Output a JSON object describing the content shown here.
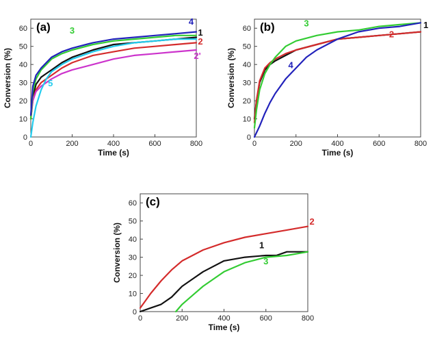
{
  "figure": {
    "panels": [
      "(a)",
      "(b)",
      "(c)"
    ]
  },
  "chart_data": [
    {
      "type": "line",
      "panel_label": "(a)",
      "xlabel": "Time (s)",
      "ylabel": "Conversion (%)",
      "xlim": [
        0,
        800
      ],
      "ylim": [
        0,
        65
      ],
      "xticks": [
        0,
        200,
        400,
        600,
        800
      ],
      "yticks": [
        0,
        10,
        20,
        30,
        40,
        50,
        60
      ],
      "grid": false,
      "series": [
        {
          "name": "1",
          "color": "#111111",
          "x": [
            0,
            10,
            25,
            50,
            75,
            100,
            150,
            200,
            300,
            400,
            500,
            600,
            700,
            800
          ],
          "y": [
            10,
            22,
            29,
            33,
            35,
            37,
            41,
            44,
            48,
            51,
            52,
            53,
            54,
            55
          ]
        },
        {
          "name": "2",
          "color": "#d42b2b",
          "x": [
            0,
            10,
            25,
            50,
            75,
            100,
            150,
            200,
            300,
            400,
            500,
            600,
            700,
            800
          ],
          "y": [
            10,
            20,
            26,
            30,
            32,
            34,
            38,
            41,
            45,
            47,
            49,
            50,
            51,
            52
          ]
        },
        {
          "name": "2'",
          "color": "#cc33cc",
          "x": [
            0,
            10,
            25,
            50,
            75,
            100,
            150,
            200,
            300,
            400,
            500,
            600,
            700,
            800
          ],
          "y": [
            12,
            20,
            25,
            28,
            30,
            32,
            35,
            37,
            40,
            43,
            45,
            46,
            47,
            48
          ]
        },
        {
          "name": "3",
          "color": "#33cc33",
          "x": [
            0,
            10,
            25,
            50,
            75,
            100,
            150,
            200,
            300,
            400,
            500,
            600,
            700,
            800
          ],
          "y": [
            10,
            25,
            32,
            37,
            40,
            43,
            46,
            48,
            51,
            53,
            54,
            55,
            56,
            56
          ]
        },
        {
          "name": "4",
          "color": "#2222bb",
          "x": [
            0,
            10,
            25,
            50,
            75,
            100,
            150,
            200,
            300,
            400,
            500,
            600,
            700,
            800
          ],
          "y": [
            12,
            28,
            34,
            38,
            41,
            44,
            47,
            49,
            52,
            54,
            55,
            56,
            57,
            58
          ]
        },
        {
          "name": "5",
          "color": "#22ccee",
          "x": [
            0,
            10,
            25,
            50,
            75,
            100,
            150,
            200,
            300,
            400,
            500,
            600,
            700,
            800
          ],
          "y": [
            0,
            8,
            17,
            26,
            32,
            36,
            40,
            43,
            47,
            50,
            52,
            53,
            54,
            54
          ]
        }
      ],
      "labels": [
        {
          "text": "4",
          "x": 775,
          "y": 62,
          "color": "#2222bb"
        },
        {
          "text": "1",
          "x": 820,
          "y": 56,
          "color": "#111111"
        },
        {
          "text": "2",
          "x": 820,
          "y": 51,
          "color": "#d42b2b"
        },
        {
          "text": "2'",
          "x": 805,
          "y": 43,
          "color": "#cc33cc"
        },
        {
          "text": "3",
          "x": 200,
          "y": 57,
          "color": "#33cc33"
        },
        {
          "text": "5",
          "x": 95,
          "y": 28,
          "color": "#22ccee"
        }
      ]
    },
    {
      "type": "line",
      "panel_label": "(b)",
      "xlabel": "Time (s)",
      "ylabel": "Conversion (%)",
      "xlim": [
        0,
        800
      ],
      "ylim": [
        0,
        65
      ],
      "xticks": [
        0,
        200,
        400,
        600,
        800
      ],
      "yticks": [
        0,
        10,
        20,
        30,
        40,
        50,
        60
      ],
      "grid": false,
      "series": [
        {
          "name": "1",
          "color": "#111111",
          "x": [
            0,
            10,
            25,
            50,
            75,
            100,
            150,
            200,
            300,
            400,
            500,
            600,
            700,
            800
          ],
          "y": [
            10,
            20,
            30,
            37,
            40,
            42,
            45,
            48,
            51,
            54,
            55,
            56,
            57,
            58
          ]
        },
        {
          "name": "2",
          "color": "#d42b2b",
          "x": [
            0,
            10,
            25,
            50,
            75,
            100,
            150,
            200,
            300,
            400,
            500,
            600,
            700,
            800
          ],
          "y": [
            8,
            20,
            31,
            38,
            41,
            43,
            46,
            48,
            51,
            54,
            55,
            56,
            57,
            58
          ]
        },
        {
          "name": "3",
          "color": "#33cc33",
          "x": [
            0,
            10,
            25,
            50,
            75,
            100,
            150,
            200,
            300,
            400,
            500,
            600,
            700,
            800
          ],
          "y": [
            5,
            15,
            26,
            35,
            40,
            44,
            50,
            53,
            56,
            58,
            59,
            61,
            62,
            63
          ]
        },
        {
          "name": "4",
          "color": "#2222bb",
          "x": [
            0,
            25,
            50,
            75,
            100,
            150,
            200,
            250,
            300,
            400,
            500,
            600,
            700,
            800
          ],
          "y": [
            0,
            6,
            13,
            19,
            24,
            32,
            38,
            44,
            48,
            54,
            58,
            60,
            61,
            63
          ]
        }
      ],
      "labels": [
        {
          "text": "1",
          "x": 825,
          "y": 60,
          "color": "#111111"
        },
        {
          "text": "2",
          "x": 660,
          "y": 55,
          "color": "#d42b2b"
        },
        {
          "text": "3",
          "x": 250,
          "y": 61,
          "color": "#33cc33"
        },
        {
          "text": "4",
          "x": 175,
          "y": 38,
          "color": "#2222bb"
        }
      ]
    },
    {
      "type": "line",
      "panel_label": "(c)",
      "xlabel": "Time (s)",
      "ylabel": "Conversion (%)",
      "xlim": [
        0,
        800
      ],
      "ylim": [
        0,
        65
      ],
      "xticks": [
        0,
        200,
        400,
        600,
        800
      ],
      "yticks": [
        0,
        10,
        20,
        30,
        40,
        50,
        60
      ],
      "grid": false,
      "series": [
        {
          "name": "1",
          "color": "#111111",
          "x": [
            0,
            50,
            100,
            150,
            200,
            250,
            300,
            400,
            500,
            600,
            650,
            700,
            800
          ],
          "y": [
            0,
            2,
            4,
            8,
            14,
            18,
            22,
            28,
            30,
            31,
            31,
            33,
            33
          ]
        },
        {
          "name": "2",
          "color": "#d42b2b",
          "x": [
            0,
            25,
            50,
            100,
            150,
            200,
            300,
            400,
            500,
            600,
            700,
            800
          ],
          "y": [
            2,
            6,
            10,
            17,
            23,
            28,
            34,
            38,
            41,
            43,
            45,
            47
          ]
        },
        {
          "name": "3",
          "color": "#33cc33",
          "x": [
            170,
            200,
            250,
            300,
            350,
            400,
            500,
            600,
            700,
            800
          ],
          "y": [
            0,
            4,
            9,
            14,
            18,
            22,
            27,
            30,
            31,
            33
          ]
        }
      ],
      "labels": [
        {
          "text": "1",
          "x": 580,
          "y": 35,
          "color": "#111111"
        },
        {
          "text": "2",
          "x": 820,
          "y": 48,
          "color": "#d42b2b"
        },
        {
          "text": "3",
          "x": 600,
          "y": 26,
          "color": "#33cc33"
        }
      ]
    }
  ]
}
